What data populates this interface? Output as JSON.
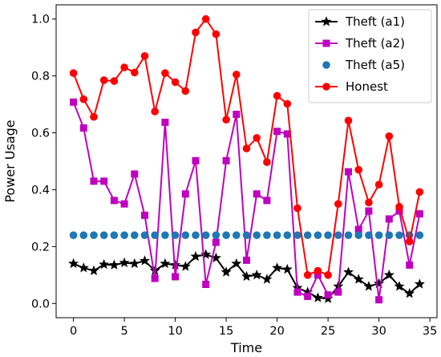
{
  "chart_data": {
    "type": "line",
    "xlabel": "Time",
    "ylabel": "Power Usage",
    "xlim": [
      -1.7,
      35.7
    ],
    "ylim": [
      -0.05,
      1.05
    ],
    "xticks": [
      0,
      5,
      10,
      15,
      20,
      25,
      30,
      35
    ],
    "xtick_labels": [
      "0",
      "5",
      "10",
      "15",
      "20",
      "25",
      "30",
      "35"
    ],
    "yticks": [
      0.0,
      0.2,
      0.4,
      0.6,
      0.8,
      1.0
    ],
    "ytick_labels": [
      "0.0",
      "0.2",
      "0.4",
      "0.6",
      "0.8",
      "1.0"
    ],
    "grid": false,
    "legend_position": "top-right",
    "x": [
      0,
      1,
      2,
      3,
      4,
      5,
      6,
      7,
      8,
      9,
      10,
      11,
      12,
      13,
      14,
      15,
      16,
      17,
      18,
      19,
      20,
      21,
      22,
      23,
      24,
      25,
      26,
      27,
      28,
      29,
      30,
      31,
      32,
      33,
      34
    ],
    "series": [
      {
        "name": "Theft (a1)",
        "color": "#000000",
        "marker": "star",
        "line": true,
        "values": [
          0.14,
          0.125,
          0.115,
          0.137,
          0.135,
          0.143,
          0.14,
          0.15,
          0.115,
          0.14,
          0.135,
          0.13,
          0.165,
          0.172,
          0.16,
          0.11,
          0.14,
          0.095,
          0.1,
          0.085,
          0.125,
          0.12,
          0.055,
          0.04,
          0.02,
          0.017,
          0.06,
          0.11,
          0.085,
          0.06,
          0.07,
          0.1,
          0.06,
          0.035,
          0.068
        ]
      },
      {
        "name": "Theft (a2)",
        "color": "#bf00bf",
        "marker": "square",
        "line": true,
        "values": [
          0.708,
          0.617,
          0.43,
          0.43,
          0.362,
          0.35,
          0.455,
          0.31,
          0.088,
          0.637,
          0.094,
          0.385,
          0.502,
          0.067,
          0.215,
          0.502,
          0.665,
          0.152,
          0.385,
          0.362,
          0.605,
          0.596,
          0.04,
          0.025,
          0.1,
          0.03,
          0.04,
          0.463,
          0.26,
          0.325,
          0.013,
          0.297,
          0.325,
          0.135,
          0.315
        ]
      },
      {
        "name": "Theft (a5)",
        "color": "#1f77b4",
        "marker": "circle",
        "line": false,
        "values": [
          0.24,
          0.24,
          0.24,
          0.24,
          0.24,
          0.24,
          0.24,
          0.24,
          0.24,
          0.24,
          0.24,
          0.24,
          0.24,
          0.24,
          0.24,
          0.24,
          0.24,
          0.24,
          0.24,
          0.24,
          0.24,
          0.24,
          0.24,
          0.24,
          0.24,
          0.24,
          0.24,
          0.24,
          0.24,
          0.24,
          0.24,
          0.24,
          0.24,
          0.24,
          0.24
        ]
      },
      {
        "name": "Honest",
        "color": "#ff0000",
        "marker": "circle",
        "line": true,
        "values": [
          0.81,
          0.718,
          0.656,
          0.785,
          0.782,
          0.83,
          0.812,
          0.87,
          0.675,
          0.81,
          0.778,
          0.747,
          0.953,
          1.0,
          0.947,
          0.646,
          0.805,
          0.545,
          0.582,
          0.497,
          0.73,
          0.702,
          0.335,
          0.1,
          0.115,
          0.1,
          0.35,
          0.643,
          0.47,
          0.355,
          0.418,
          0.588,
          0.34,
          0.218,
          0.392
        ]
      }
    ]
  }
}
